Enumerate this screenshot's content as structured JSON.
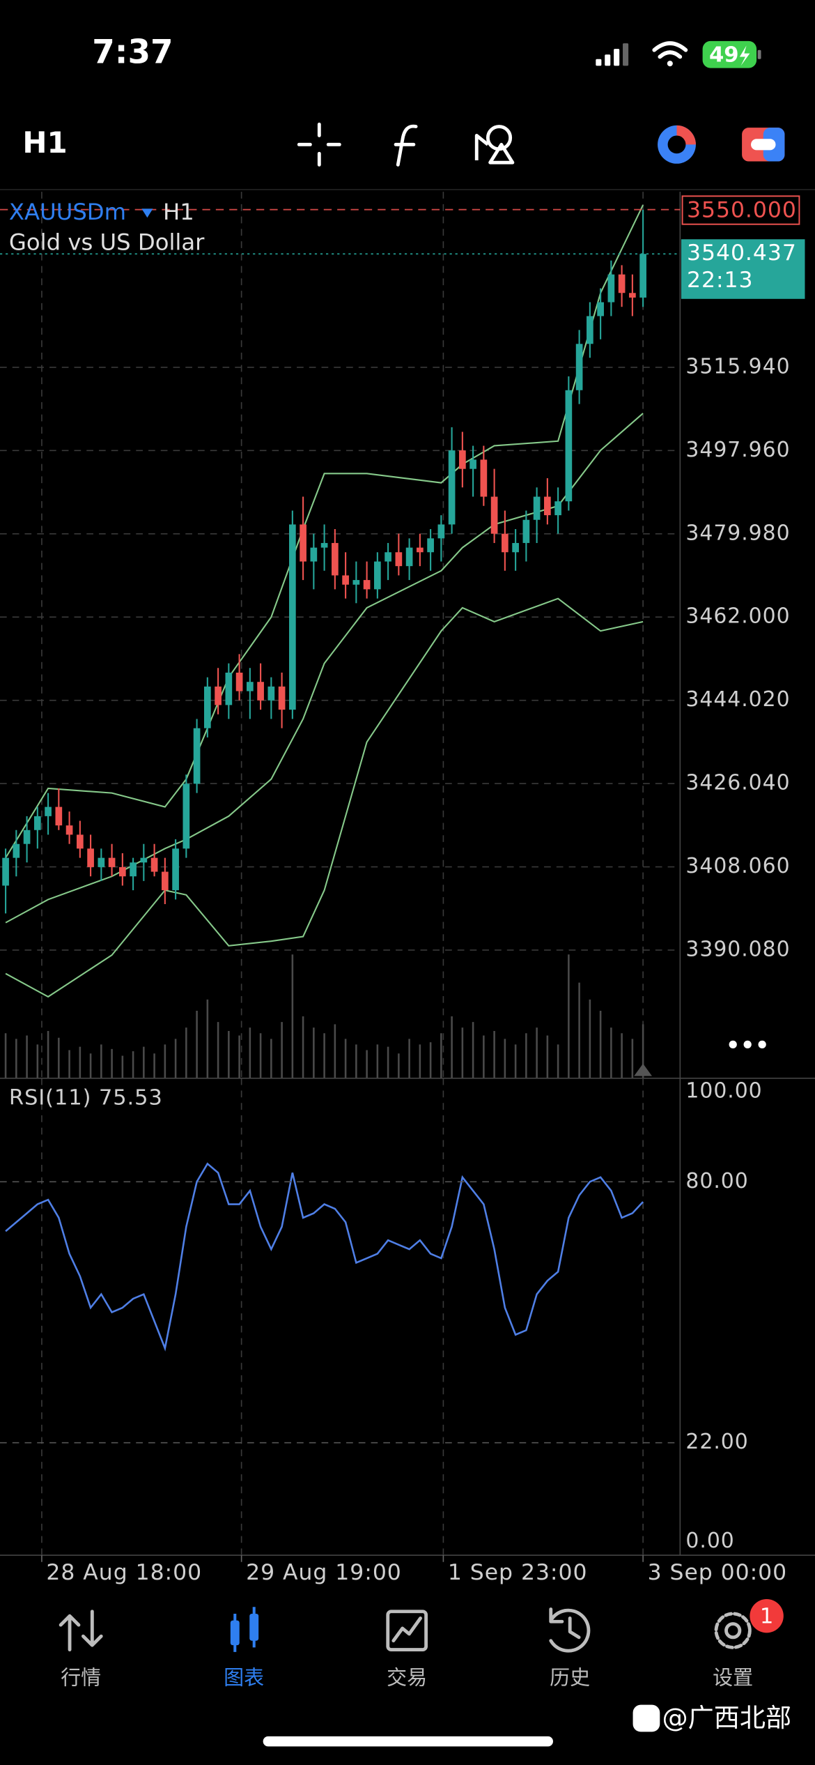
{
  "status_bar": {
    "time": "7:37",
    "battery": "49"
  },
  "toolbar": {
    "timeframe": "H1"
  },
  "chart_data": [
    {
      "type": "candlestick",
      "symbol": "XAUUSDm",
      "timeframe": "H1",
      "description": "Gold vs US Dollar",
      "open": [
        3404,
        3410,
        3413,
        3416,
        3419,
        3421,
        3417,
        3415,
        3412,
        3408,
        3410,
        3408,
        3406,
        3409,
        3410,
        3407,
        3403,
        3412,
        3426,
        3438,
        3447,
        3443,
        3450,
        3446,
        3448,
        3444,
        3447,
        3442,
        3482,
        3474,
        3477,
        3478,
        3471,
        3469,
        3470,
        3468,
        3474,
        3476,
        3473,
        3477,
        3476,
        3479,
        3482,
        3498,
        3494,
        3496,
        3488,
        3480,
        3476,
        3478,
        3483,
        3488,
        3484,
        3487,
        3511,
        3521,
        3527,
        3530,
        3536,
        3532,
        3531
      ],
      "high": [
        3412,
        3416,
        3419,
        3421,
        3424,
        3425,
        3420,
        3418,
        3415,
        3412,
        3413,
        3411,
        3410,
        3413,
        3413,
        3410,
        3414,
        3428,
        3440,
        3449,
        3451,
        3452,
        3454,
        3451,
        3452,
        3449,
        3450,
        3485,
        3488,
        3480,
        3482,
        3481,
        3476,
        3474,
        3474,
        3476,
        3478,
        3480,
        3479,
        3480,
        3481,
        3484,
        3503,
        3502,
        3499,
        3499,
        3494,
        3485,
        3481,
        3485,
        3490,
        3492,
        3490,
        3514,
        3524,
        3530,
        3533,
        3539,
        3538,
        3536,
        3550
      ],
      "low": [
        3398,
        3406,
        3409,
        3412,
        3415,
        3416,
        3413,
        3410,
        3406,
        3405,
        3406,
        3404,
        3403,
        3405,
        3406,
        3400,
        3401,
        3410,
        3424,
        3436,
        3441,
        3440,
        3444,
        3440,
        3442,
        3440,
        3438,
        3440,
        3470,
        3468,
        3472,
        3468,
        3466,
        3465,
        3466,
        3466,
        3470,
        3471,
        3470,
        3473,
        3472,
        3474,
        3480,
        3490,
        3488,
        3486,
        3478,
        3472,
        3472,
        3474,
        3478,
        3482,
        3480,
        3485,
        3508,
        3518,
        3522,
        3527,
        3529,
        3527,
        3529
      ],
      "close": [
        3410,
        3413,
        3416,
        3419,
        3421,
        3417,
        3415,
        3412,
        3408,
        3410,
        3408,
        3406,
        3409,
        3410,
        3407,
        3403,
        3412,
        3426,
        3438,
        3447,
        3443,
        3450,
        3446,
        3448,
        3444,
        3447,
        3442,
        3482,
        3474,
        3477,
        3478,
        3471,
        3469,
        3470,
        3468,
        3474,
        3476,
        3473,
        3477,
        3476,
        3479,
        3482,
        3498,
        3494,
        3496,
        3488,
        3480,
        3476,
        3478,
        3483,
        3488,
        3484,
        3487,
        3511,
        3521,
        3527,
        3530,
        3536,
        3532,
        3531,
        3540.437
      ],
      "up_color": "#26a69a",
      "down_color": "#ef5350",
      "overlays": [
        {
          "color": "#86c98a",
          "x": [
            0,
            4,
            10,
            15,
            17,
            21,
            25,
            28,
            30,
            34,
            41,
            43,
            46,
            52,
            56,
            60
          ],
          "values": [
            3410,
            3425,
            3424,
            3421,
            3427,
            3449,
            3462,
            3481,
            3493,
            3493,
            3491,
            3495,
            3499,
            3500,
            3532,
            3551
          ]
        },
        {
          "color": "#86c98a",
          "x": [
            0,
            4,
            10,
            15,
            17,
            21,
            25,
            28,
            30,
            34,
            41,
            43,
            46,
            52,
            56,
            60
          ],
          "values": [
            3396,
            3401,
            3406,
            3412,
            3414,
            3419,
            3427,
            3440,
            3452,
            3464,
            3472,
            3477,
            3482,
            3486,
            3498,
            3506
          ]
        },
        {
          "color": "#86c98a",
          "x": [
            0,
            4,
            10,
            15,
            17,
            21,
            25,
            28,
            30,
            34,
            41,
            43,
            46,
            52,
            56,
            60
          ],
          "values": [
            3385,
            3380,
            3389,
            3403,
            3402,
            3391,
            3392,
            3393,
            3403,
            3435,
            3459,
            3464,
            3461,
            3466,
            3459,
            3461
          ]
        }
      ],
      "volume": {
        "color": "#4a4a4a",
        "values": [
          40,
          35,
          38,
          30,
          42,
          36,
          25,
          28,
          22,
          30,
          26,
          20,
          24,
          28,
          22,
          30,
          35,
          45,
          60,
          70,
          50,
          42,
          38,
          45,
          40,
          35,
          50,
          110,
          55,
          45,
          40,
          48,
          35,
          30,
          25,
          30,
          28,
          22,
          35,
          30,
          32,
          40,
          55,
          45,
          50,
          38,
          42,
          35,
          30,
          40,
          45,
          38,
          30,
          110,
          85,
          70,
          60,
          45,
          40,
          35,
          48
        ]
      },
      "price_lines": [
        {
          "value": 3550,
          "label": "3550.000",
          "color": "#ef5350"
        },
        {
          "value": 3540.437,
          "label": "3540.437",
          "sub_label": "22:13",
          "color": "#26a69a"
        }
      ],
      "ylim": [
        3362.4,
        3553.85
      ],
      "yticks": [
        {
          "value": 3515.94,
          "label": "3515.940"
        },
        {
          "value": 3497.96,
          "label": "3497.960"
        },
        {
          "value": 3479.98,
          "label": "3479.980"
        },
        {
          "value": 3462,
          "label": "3462.000"
        },
        {
          "value": 3444.02,
          "label": "3444.020"
        },
        {
          "value": 3426.04,
          "label": "3426.040"
        },
        {
          "value": 3408.06,
          "label": "3408.060"
        },
        {
          "value": 3390.08,
          "label": "3390.080"
        }
      ],
      "xlim": [
        -0.53,
        63.49
      ],
      "xticks": [
        {
          "value": 3.4,
          "label": "28 Aug 18:00"
        },
        {
          "value": 22.2,
          "label": "29 Aug 19:00"
        },
        {
          "value": 41.2,
          "label": "1 Sep 23:00"
        },
        {
          "value": 60,
          "label": "3 Sep 00:00"
        }
      ],
      "grid": true
    },
    {
      "type": "line",
      "title": "RSI(11) 75.53",
      "color": "#4f7fe6",
      "values": [
        69,
        71,
        73,
        75,
        76,
        72,
        64,
        59,
        52,
        55,
        51,
        52,
        54,
        55,
        49,
        43,
        55,
        70,
        80,
        84,
        82,
        75,
        75,
        78,
        70,
        65,
        70,
        82,
        72,
        73,
        75,
        74,
        71,
        62,
        63,
        64,
        67,
        66,
        65,
        67,
        64,
        63,
        70,
        81,
        78,
        75,
        65,
        52,
        46,
        47,
        55,
        58,
        60,
        72,
        77,
        80,
        81,
        78,
        72,
        73,
        75.53
      ],
      "ylim": [
        0,
        100
      ],
      "yticks": [
        {
          "value": 100,
          "label": "100.00"
        },
        {
          "value": 80,
          "label": "80.00"
        },
        {
          "value": 22,
          "label": "22.00"
        },
        {
          "value": 0,
          "label": "0.00"
        }
      ]
    }
  ],
  "nav": {
    "items": [
      "行情",
      "图表",
      "交易",
      "历史",
      "设置"
    ],
    "active": 1,
    "badge": "1"
  },
  "watermark": "@广西北部"
}
